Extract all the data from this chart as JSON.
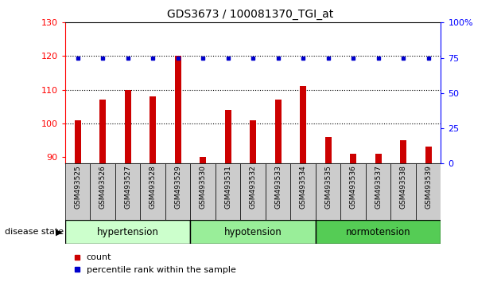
{
  "title": "GDS3673 / 100081370_TGI_at",
  "samples": [
    "GSM493525",
    "GSM493526",
    "GSM493527",
    "GSM493528",
    "GSM493529",
    "GSM493530",
    "GSM493531",
    "GSM493532",
    "GSM493533",
    "GSM493534",
    "GSM493535",
    "GSM493536",
    "GSM493537",
    "GSM493538",
    "GSM493539"
  ],
  "count_values": [
    101,
    107,
    110,
    108,
    120,
    90,
    104,
    101,
    107,
    111,
    96,
    91,
    91,
    95,
    93
  ],
  "percentile_values": [
    75,
    75,
    75,
    75,
    75,
    75,
    75,
    75,
    75,
    75,
    75,
    75,
    75,
    75,
    75
  ],
  "group_configs": [
    [
      0,
      5,
      "hypertension",
      "#ccffcc"
    ],
    [
      5,
      10,
      "hypotension",
      "#99ee99"
    ],
    [
      10,
      15,
      "normotension",
      "#55cc55"
    ]
  ],
  "ylim_left": [
    88,
    130
  ],
  "ylim_right": [
    0,
    100
  ],
  "yticks_left": [
    90,
    100,
    110,
    120,
    130
  ],
  "yticks_right": [
    0,
    25,
    50,
    75,
    100
  ],
  "bar_color": "#cc0000",
  "dot_color": "#0000cc",
  "background_color": "#ffffff",
  "plot_bg_color": "#ffffff",
  "label_bg_color": "#cccccc",
  "legend_count_label": "count",
  "legend_pct_label": "percentile rank within the sample",
  "disease_state_label": "disease state"
}
